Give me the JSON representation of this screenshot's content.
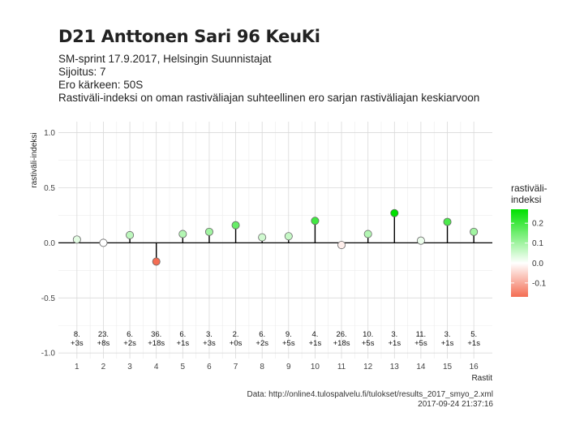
{
  "header": {
    "title": "D21 Anttonen Sari 96 KeuKi",
    "subtitle_lines": [
      "SM-sprint 17.9.2017, Helsingin Suunnistajat",
      "Sijoitus: 7",
      "Ero kärkeen: 50S",
      "Rastiväli-indeksi on oman rastiväliajan suhteellinen ero sarjan rastiväliajan keskiarvoon"
    ]
  },
  "caption": {
    "line1": "Data: http://online4.tulospalvelu.fi/tulokset/results_2017_smyo_2.xml",
    "line2": "2017-09-24 21:37:16"
  },
  "chart_data": {
    "type": "lollipop",
    "xlabel": "Rastit",
    "ylabel": "rastiväli-indeksi",
    "ylim": [
      -1.05,
      1.1
    ],
    "y_ticks": [
      "1.0",
      "0.5",
      "0.0",
      "-0.5",
      "-1.0"
    ],
    "x_ticks": [
      "1",
      "2",
      "3",
      "4",
      "5",
      "6",
      "7",
      "8",
      "9",
      "10",
      "11",
      "12",
      "13",
      "14",
      "15",
      "16"
    ],
    "grid": true,
    "points": [
      {
        "x": 1,
        "y": 0.03,
        "rank": "8.",
        "diff": "+3s"
      },
      {
        "x": 2,
        "y": 0.0,
        "rank": "23.",
        "diff": "+8s"
      },
      {
        "x": 3,
        "y": 0.07,
        "rank": "6.",
        "diff": "+2s"
      },
      {
        "x": 4,
        "y": -0.17,
        "rank": "36.",
        "diff": "+18s"
      },
      {
        "x": 5,
        "y": 0.08,
        "rank": "6.",
        "diff": "+1s"
      },
      {
        "x": 6,
        "y": 0.1,
        "rank": "3.",
        "diff": "+3s"
      },
      {
        "x": 7,
        "y": 0.16,
        "rank": "2.",
        "diff": "+0s"
      },
      {
        "x": 8,
        "y": 0.05,
        "rank": "6.",
        "diff": "+2s"
      },
      {
        "x": 9,
        "y": 0.06,
        "rank": "9.",
        "diff": "+5s"
      },
      {
        "x": 10,
        "y": 0.2,
        "rank": "4.",
        "diff": "+1s"
      },
      {
        "x": 11,
        "y": -0.02,
        "rank": "26.",
        "diff": "+18s"
      },
      {
        "x": 12,
        "y": 0.08,
        "rank": "10.",
        "diff": "+5s"
      },
      {
        "x": 13,
        "y": 0.27,
        "rank": "3.",
        "diff": "+1s"
      },
      {
        "x": 14,
        "y": 0.02,
        "rank": "11.",
        "diff": "+5s"
      },
      {
        "x": 15,
        "y": 0.19,
        "rank": "3.",
        "diff": "+1s"
      },
      {
        "x": 16,
        "y": 0.1,
        "rank": "5.",
        "diff": "+1s"
      }
    ],
    "legend": {
      "title_lines": [
        "rastiväli-",
        "indeksi"
      ],
      "ticks": [
        "0.2",
        "0.1",
        "0.0",
        "-0.1"
      ],
      "tick_values": [
        0.2,
        0.1,
        0.0,
        -0.1
      ],
      "range": [
        -0.17,
        0.27
      ],
      "placement": "right"
    },
    "colors": {
      "high": "#00e000",
      "mid": "#ffffff",
      "low": "#f46d53",
      "grid_major": "#d9d9d9",
      "grid_minor": "#ececec",
      "zero_line": "#000000"
    }
  }
}
